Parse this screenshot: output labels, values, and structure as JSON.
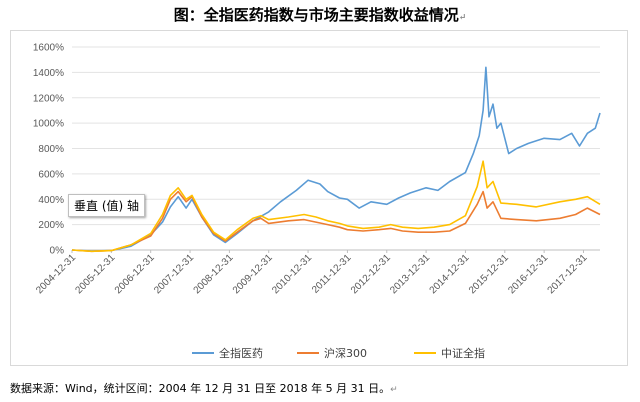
{
  "title": "图：全指医药指数与市场主要指数收益情况",
  "title_mark": "↵",
  "source": "数据来源：Wind，统计区间：2004 年 12 月 31 日至 2018 年 5 月 31 日。",
  "source_mark": "↵",
  "tooltip": "垂直 (值) 轴",
  "chart_data": {
    "type": "line",
    "ylim": [
      0,
      1600
    ],
    "yticks": [
      "0%",
      "200%",
      "400%",
      "600%",
      "800%",
      "1000%",
      "1200%",
      "1400%",
      "1600%"
    ],
    "xticks": [
      "2004-12-31",
      "2005-12-31",
      "2006-12-31",
      "2007-12-31",
      "2008-12-31",
      "2009-12-31",
      "2010-12-31",
      "2011-12-31",
      "2012-12-31",
      "2013-12-31",
      "2014-12-31",
      "2015-12-31",
      "2016-12-31",
      "2017-12-31"
    ],
    "x_unit": "years since 2004-12-31",
    "grid": true,
    "legend_position": "bottom",
    "series": [
      {
        "name": "全指医药",
        "color": "#5b9bd5",
        "points": [
          [
            0,
            0
          ],
          [
            0.5,
            -8
          ],
          [
            1,
            -5
          ],
          [
            1.5,
            30
          ],
          [
            2,
            120
          ],
          [
            2.3,
            220
          ],
          [
            2.5,
            340
          ],
          [
            2.7,
            420
          ],
          [
            2.9,
            330
          ],
          [
            3.05,
            400
          ],
          [
            3.3,
            260
          ],
          [
            3.6,
            120
          ],
          [
            3.9,
            60
          ],
          [
            4.2,
            130
          ],
          [
            4.6,
            230
          ],
          [
            5,
            300
          ],
          [
            5.3,
            380
          ],
          [
            5.7,
            470
          ],
          [
            6,
            550
          ],
          [
            6.3,
            520
          ],
          [
            6.5,
            460
          ],
          [
            6.8,
            410
          ],
          [
            7,
            400
          ],
          [
            7.3,
            330
          ],
          [
            7.6,
            380
          ],
          [
            8,
            360
          ],
          [
            8.3,
            410
          ],
          [
            8.6,
            450
          ],
          [
            9,
            490
          ],
          [
            9.3,
            470
          ],
          [
            9.6,
            540
          ],
          [
            10,
            610
          ],
          [
            10.2,
            760
          ],
          [
            10.35,
            900
          ],
          [
            10.45,
            1100
          ],
          [
            10.52,
            1440
          ],
          [
            10.6,
            1050
          ],
          [
            10.7,
            1150
          ],
          [
            10.8,
            960
          ],
          [
            10.9,
            1000
          ],
          [
            11.1,
            760
          ],
          [
            11.3,
            800
          ],
          [
            11.6,
            840
          ],
          [
            12,
            880
          ],
          [
            12.4,
            870
          ],
          [
            12.7,
            920
          ],
          [
            12.9,
            820
          ],
          [
            13.1,
            920
          ],
          [
            13.3,
            960
          ],
          [
            13.42,
            1080
          ]
        ]
      },
      {
        "name": "沪深300",
        "color": "#ed7d31",
        "points": [
          [
            0,
            0
          ],
          [
            0.5,
            -10
          ],
          [
            1,
            -5
          ],
          [
            1.5,
            40
          ],
          [
            2,
            110
          ],
          [
            2.3,
            250
          ],
          [
            2.5,
            400
          ],
          [
            2.7,
            460
          ],
          [
            2.9,
            380
          ],
          [
            3.05,
            420
          ],
          [
            3.3,
            260
          ],
          [
            3.6,
            130
          ],
          [
            3.9,
            70
          ],
          [
            4.2,
            140
          ],
          [
            4.6,
            230
          ],
          [
            4.8,
            250
          ],
          [
            5,
            210
          ],
          [
            5.5,
            230
          ],
          [
            5.9,
            240
          ],
          [
            6.2,
            220
          ],
          [
            6.5,
            200
          ],
          [
            6.8,
            180
          ],
          [
            7,
            160
          ],
          [
            7.4,
            150
          ],
          [
            7.8,
            160
          ],
          [
            8.1,
            170
          ],
          [
            8.4,
            150
          ],
          [
            8.8,
            140
          ],
          [
            9.2,
            140
          ],
          [
            9.6,
            150
          ],
          [
            10,
            210
          ],
          [
            10.3,
            360
          ],
          [
            10.45,
            460
          ],
          [
            10.55,
            330
          ],
          [
            10.7,
            380
          ],
          [
            10.9,
            250
          ],
          [
            11.3,
            240
          ],
          [
            11.8,
            230
          ],
          [
            12.4,
            250
          ],
          [
            12.8,
            280
          ],
          [
            13.1,
            330
          ],
          [
            13.42,
            280
          ]
        ]
      },
      {
        "name": "中证全指",
        "color": "#ffc000",
        "points": [
          [
            0,
            0
          ],
          [
            0.5,
            -10
          ],
          [
            1,
            -5
          ],
          [
            1.5,
            40
          ],
          [
            2,
            130
          ],
          [
            2.3,
            280
          ],
          [
            2.5,
            430
          ],
          [
            2.7,
            490
          ],
          [
            2.9,
            400
          ],
          [
            3.05,
            430
          ],
          [
            3.3,
            280
          ],
          [
            3.6,
            140
          ],
          [
            3.9,
            80
          ],
          [
            4.2,
            160
          ],
          [
            4.6,
            250
          ],
          [
            4.8,
            270
          ],
          [
            5,
            240
          ],
          [
            5.5,
            260
          ],
          [
            5.9,
            280
          ],
          [
            6.2,
            260
          ],
          [
            6.5,
            230
          ],
          [
            6.8,
            210
          ],
          [
            7,
            190
          ],
          [
            7.4,
            170
          ],
          [
            7.8,
            180
          ],
          [
            8.1,
            200
          ],
          [
            8.4,
            180
          ],
          [
            8.8,
            170
          ],
          [
            9.2,
            180
          ],
          [
            9.6,
            200
          ],
          [
            10,
            270
          ],
          [
            10.3,
            500
          ],
          [
            10.45,
            700
          ],
          [
            10.55,
            490
          ],
          [
            10.7,
            540
          ],
          [
            10.9,
            370
          ],
          [
            11.3,
            360
          ],
          [
            11.8,
            340
          ],
          [
            12.4,
            380
          ],
          [
            12.8,
            400
          ],
          [
            13.1,
            420
          ],
          [
            13.42,
            360
          ]
        ]
      }
    ]
  }
}
